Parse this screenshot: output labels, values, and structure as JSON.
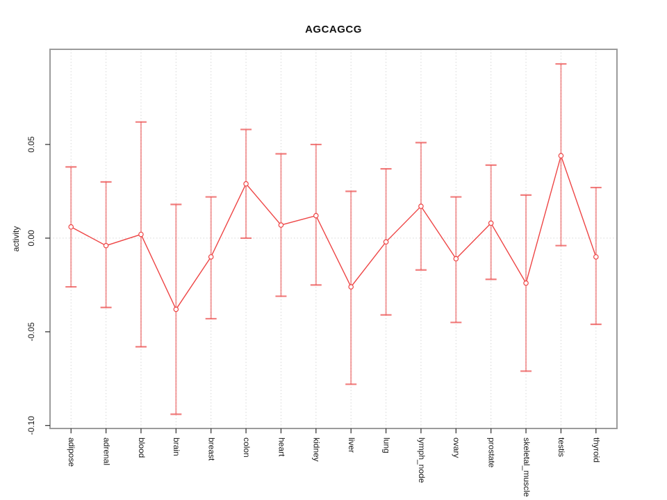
{
  "chart_data": {
    "type": "line",
    "subtype": "points-with-error-bars",
    "title": "AGCAGCG",
    "xlabel": "",
    "ylabel": "activity",
    "categories": [
      "adipose",
      "adrenal",
      "blood",
      "brain",
      "breast",
      "colon",
      "heart",
      "kidney",
      "liver",
      "lung",
      "lymph_node",
      "ovary",
      "prostate",
      "skeletal_muscle",
      "testis",
      "thyroid"
    ],
    "series": [
      {
        "name": "activity",
        "means": [
          0.006,
          -0.004,
          0.002,
          -0.038,
          -0.01,
          0.029,
          0.007,
          0.012,
          -0.026,
          -0.002,
          0.017,
          -0.011,
          0.008,
          -0.024,
          0.044,
          -0.01
        ],
        "upper": [
          0.038,
          0.03,
          0.062,
          0.018,
          0.022,
          0.058,
          0.045,
          0.05,
          0.025,
          0.037,
          0.051,
          0.022,
          0.039,
          0.023,
          0.093,
          0.027
        ],
        "lower": [
          -0.026,
          -0.037,
          -0.058,
          -0.094,
          -0.043,
          0.0,
          -0.031,
          -0.025,
          -0.078,
          -0.041,
          -0.017,
          -0.045,
          -0.022,
          -0.071,
          -0.004,
          -0.046
        ]
      }
    ],
    "yticks": [
      {
        "value": 0.05,
        "label": "0.05"
      },
      {
        "value": 0.0,
        "label": "0.00"
      },
      {
        "value": -0.05,
        "label": "-0.05"
      },
      {
        "value": -0.1,
        "label": "-0.10"
      }
    ],
    "ylim": [
      -0.1016,
      0.1008
    ],
    "xlim": [
      0.4,
      16.6
    ],
    "grid": {
      "vertical_dotted_at_categories": true,
      "horizontal_dotted_at_zero": true
    },
    "legend": "none",
    "colors": {
      "point_stroke": "#ee4545",
      "series_line": "#ee4545",
      "error_bar": "rgba(235,75,75,0.50)",
      "error_cap": "rgba(235,75,75,0.72)",
      "gridline": "#d6d6d6",
      "box": "#9b9b9b",
      "tick": "#2a2a2a",
      "label_text": "#1a1a1a",
      "background": "#ffffff"
    }
  }
}
